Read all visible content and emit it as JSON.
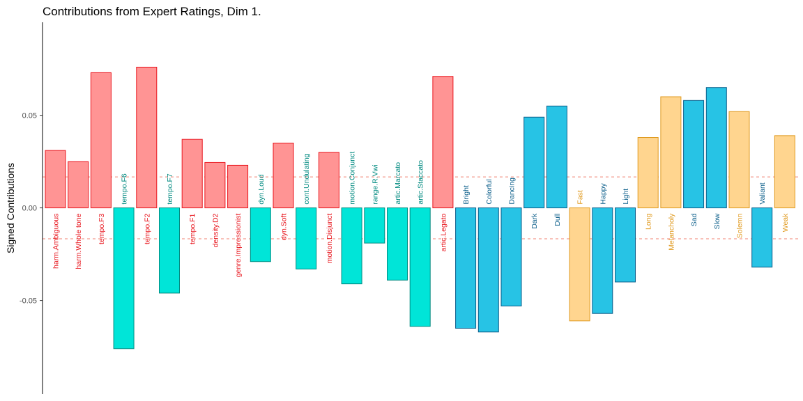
{
  "chart_data": {
    "type": "bar",
    "title": "Contributions from Expert Ratings, Dim 1.",
    "xlabel": "",
    "ylabel": "Signed Contributions",
    "ylim": [
      -0.1,
      0.099
    ],
    "yticks": [
      0.05,
      0.0,
      -0.05
    ],
    "ytick_labels": [
      "0.05",
      "0.00",
      "-0.05"
    ],
    "threshold_lines": [
      0.0167,
      -0.0167
    ],
    "grid": false,
    "groups": [
      {
        "name": "red",
        "fill": "#FF9494",
        "stroke": "#E8141C",
        "label_color": "#E8141C"
      },
      {
        "name": "cyan",
        "fill": "#00E5D8",
        "stroke": "#008A80",
        "label_color": "#008A80"
      },
      {
        "name": "blue",
        "fill": "#27C3E5",
        "stroke": "#0B5E8A",
        "label_color": "#0B5E8A"
      },
      {
        "name": "orange",
        "fill": "#FFD58F",
        "stroke": "#E09A1F",
        "label_color": "#E09A1F"
      }
    ],
    "categories": [
      "harm.Ambiguous",
      "harm.Whole tone",
      "tempo.F3",
      "tempo.F6",
      "tempo.F2",
      "tempo.F7",
      "tempo.F1",
      "density.D2",
      "genre.Impressionist",
      "dyn.Loud",
      "dyn.Soft",
      "cont.Undulating",
      "motion.Disjunct",
      "motion.Conjunct",
      "range.R.Vwi",
      "artic.Marcato",
      "artic.Staccato",
      "artic.Legato",
      "Bright",
      "Colorful",
      "Dancing",
      "Dark",
      "Dull",
      "Fast",
      "Happy",
      "Light",
      "Long",
      "Melancholy",
      "Sad",
      "Slow",
      "Solemn",
      "Valiant",
      "Weak"
    ],
    "values": [
      0.031,
      0.025,
      0.073,
      -0.076,
      0.076,
      -0.046,
      0.037,
      0.0245,
      0.023,
      -0.029,
      0.035,
      -0.033,
      0.03,
      -0.041,
      -0.019,
      -0.039,
      -0.064,
      0.071,
      -0.065,
      -0.067,
      -0.053,
      0.049,
      0.055,
      -0.061,
      -0.057,
      -0.04,
      0.038,
      0.06,
      0.058,
      0.065,
      0.052,
      -0.032,
      0.039
    ],
    "group_index": [
      0,
      0,
      0,
      1,
      0,
      1,
      0,
      0,
      0,
      1,
      0,
      1,
      0,
      1,
      1,
      1,
      1,
      0,
      2,
      2,
      2,
      2,
      2,
      3,
      2,
      2,
      3,
      3,
      2,
      2,
      3,
      2,
      3
    ]
  }
}
